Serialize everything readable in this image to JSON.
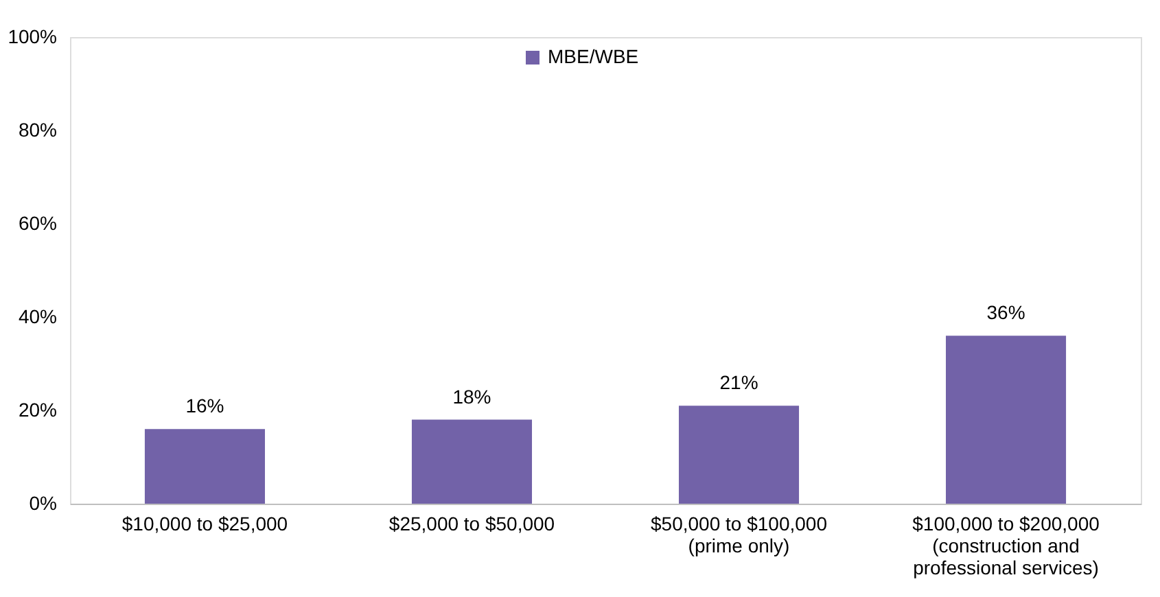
{
  "chart_data": {
    "type": "bar",
    "categories": [
      "$10,000 to $25,000",
      "$25,000 to $50,000",
      "$50,000 to $100,000\n(prime only)",
      "$100,000 to $200,000\n(construction and\nprofessional services)"
    ],
    "series": [
      {
        "name": "MBE/WBE",
        "color": "#7262a8",
        "values": [
          16,
          18,
          21,
          36
        ],
        "value_labels": [
          "16%",
          "18%",
          "21%",
          "36%"
        ]
      }
    ],
    "ylim": [
      0,
      100
    ],
    "yticks": [
      {
        "value": 0,
        "label": "0%"
      },
      {
        "value": 20,
        "label": "20%"
      },
      {
        "value": 40,
        "label": "40%"
      },
      {
        "value": 60,
        "label": "60%"
      },
      {
        "value": 80,
        "label": "80%"
      },
      {
        "value": 100,
        "label": "100%"
      }
    ],
    "grid": false,
    "legend": "top"
  }
}
